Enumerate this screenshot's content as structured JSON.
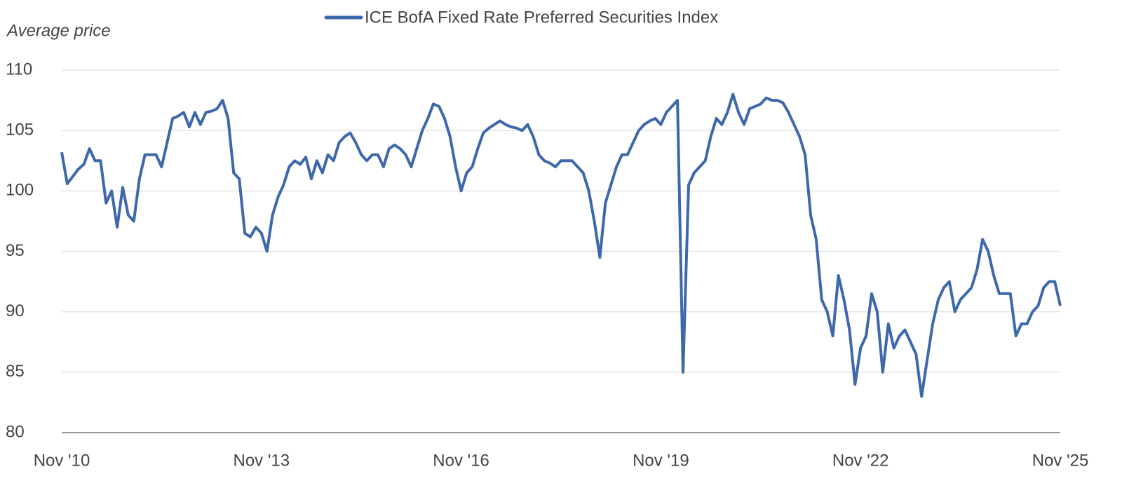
{
  "chart_data": {
    "type": "line",
    "y_label": "Average price",
    "categories": [
      "Nov '10",
      null,
      null,
      null,
      null,
      null,
      null,
      null,
      null,
      null,
      null,
      null,
      null,
      null,
      null,
      null,
      null,
      null,
      null,
      null,
      null,
      null,
      null,
      null,
      null,
      null,
      null,
      null,
      null,
      null,
      null,
      null,
      null,
      null,
      null,
      null,
      "Nov '13",
      null,
      null,
      null,
      null,
      null,
      null,
      null,
      null,
      null,
      null,
      null,
      null,
      null,
      null,
      null,
      null,
      null,
      null,
      null,
      null,
      null,
      null,
      null,
      null,
      null,
      null,
      null,
      null,
      null,
      null,
      null,
      null,
      null,
      null,
      null,
      "Nov '16",
      null,
      null,
      null,
      null,
      null,
      null,
      null,
      null,
      null,
      null,
      null,
      null,
      null,
      null,
      null,
      null,
      null,
      null,
      null,
      null,
      null,
      null,
      null,
      null,
      null,
      null,
      null,
      null,
      null,
      null,
      null,
      null,
      null,
      null,
      null,
      "Nov '19",
      null,
      null,
      null,
      null,
      null,
      null,
      null,
      null,
      null,
      null,
      null,
      null,
      null,
      null,
      null,
      null,
      null,
      null,
      null,
      null,
      null,
      null,
      null,
      null,
      null,
      null,
      null,
      null,
      null,
      null,
      null,
      null,
      null,
      null,
      null,
      "Nov '22",
      null,
      null,
      null,
      null,
      null,
      null,
      null,
      null,
      null,
      null,
      null,
      null,
      null,
      null,
      null,
      null,
      null,
      null,
      null,
      null,
      null,
      null,
      null,
      null,
      null,
      null,
      null,
      null,
      null,
      null,
      null,
      null,
      null,
      null,
      null,
      "Nov '25"
    ],
    "series": [
      {
        "name": "ICE BofA Fixed Rate Preferred Securities Index",
        "color": "#3d68aa",
        "values": [
          103.2,
          100.6,
          101.2,
          101.8,
          102.2,
          103.5,
          102.5,
          102.5,
          99,
          100,
          97,
          100.3,
          98,
          97.5,
          101,
          103,
          103,
          103,
          102,
          104,
          106,
          106.2,
          106.5,
          105.3,
          106.5,
          105.5,
          106.5,
          106.6,
          106.8,
          107.5,
          106,
          101.5,
          101,
          96.5,
          96.2,
          97,
          96.5,
          95,
          98,
          99.5,
          100.5,
          102,
          102.5,
          102.2,
          102.8,
          101,
          102.5,
          101.5,
          103,
          102.5,
          104,
          104.5,
          104.8,
          104,
          103,
          102.5,
          103,
          103,
          102,
          103.5,
          103.8,
          103.5,
          103,
          102,
          103.5,
          105,
          106,
          107.2,
          107,
          106,
          104.5,
          102,
          100,
          101.5,
          102,
          103.5,
          104.8,
          105.2,
          105.5,
          105.8,
          105.5,
          105.3,
          105.2,
          105,
          105.5,
          104.5,
          103,
          102.5,
          102.3,
          102,
          102.5,
          102.5,
          102.5,
          102,
          101.5,
          100,
          97.5,
          94.5,
          99,
          100.5,
          102,
          103,
          103,
          104,
          105,
          105.5,
          105.8,
          106,
          105.5,
          106.5,
          107,
          107.5,
          85,
          100.5,
          101.5,
          102,
          102.5,
          104.5,
          106,
          105.5,
          106.5,
          108,
          106.5,
          105.5,
          106.8,
          107,
          107.2,
          107.7,
          107.5,
          107.5,
          107.3,
          106.5,
          105.5,
          104.5,
          103,
          98,
          96,
          91,
          90,
          88,
          93,
          91,
          88.5,
          84,
          87,
          88,
          91.5,
          90,
          85,
          89,
          87,
          88,
          88.5,
          87.5,
          86.5,
          83,
          86,
          89,
          91,
          92,
          92.5,
          90,
          91,
          91.5,
          92,
          93.5,
          96,
          95,
          93,
          91.5,
          91.5,
          91.5,
          88,
          89,
          89,
          90,
          90.5,
          92,
          92.5,
          92.5,
          90.5
        ]
      }
    ],
    "ylim": [
      80,
      110
    ],
    "yticks": [
      80,
      85,
      90,
      95,
      100,
      105,
      110
    ],
    "grid": true,
    "legend": "top"
  }
}
